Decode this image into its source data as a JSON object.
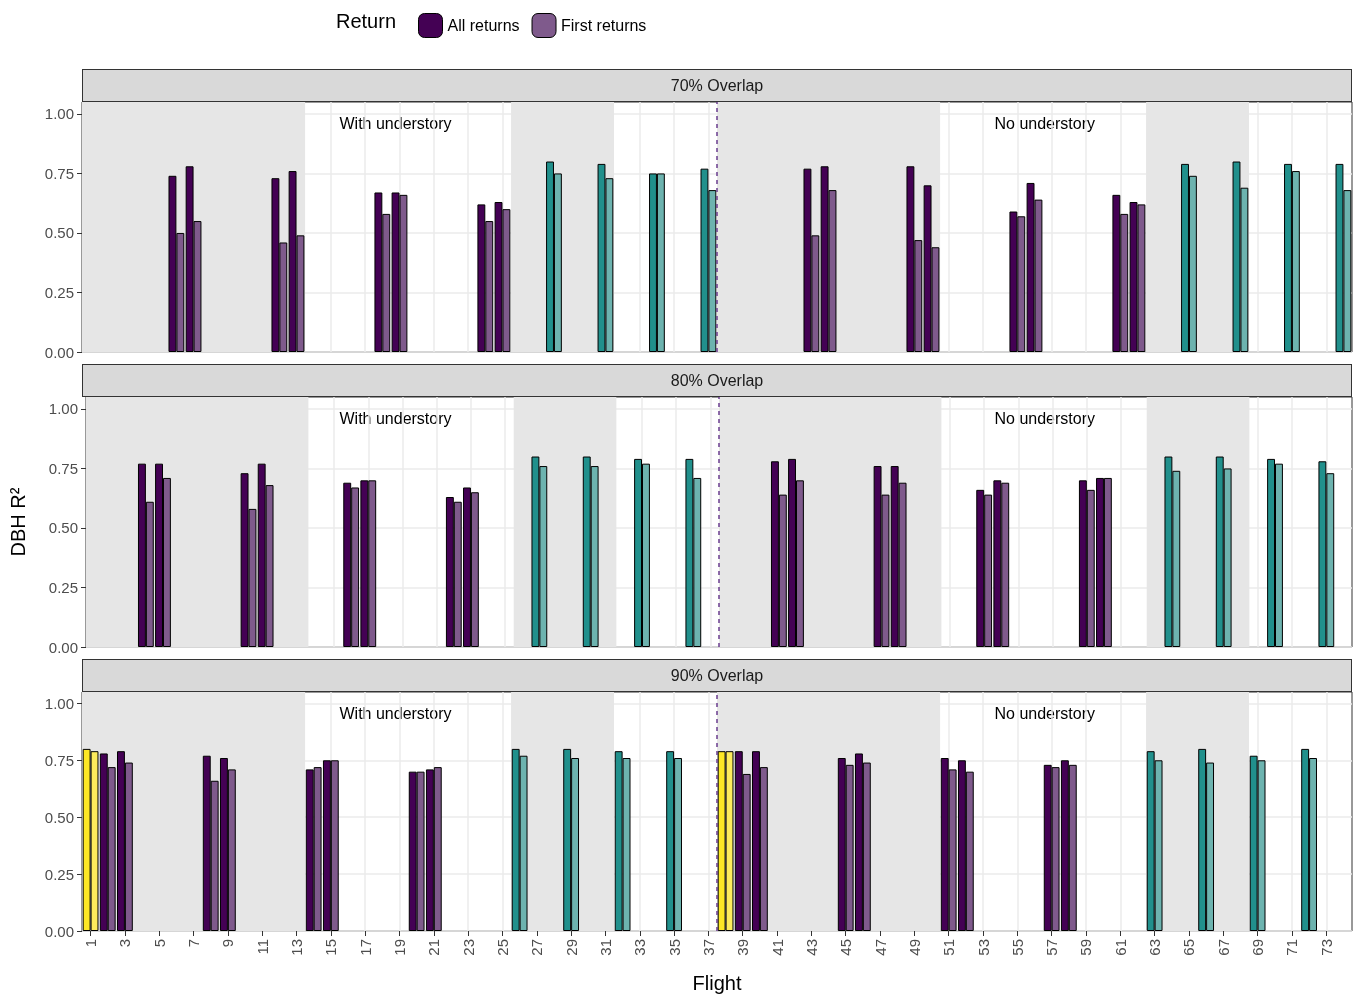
{
  "chart_data": [
    {
      "type": "bar",
      "title": "70% Overlap",
      "legend": "top",
      "legend_title": "Return",
      "tick_labels": "y",
      "grid": true,
      "annotations": [
        "With understory",
        "No understory"
      ],
      "x": [
        6,
        7,
        12,
        13,
        18,
        19,
        24,
        25,
        28,
        31,
        34,
        37,
        43,
        44,
        49,
        50,
        55,
        56,
        61,
        62,
        65,
        68,
        71,
        74
      ],
      "xlim": [
        0.5,
        74.5
      ],
      "xticks": [
        1,
        3,
        5,
        7,
        9,
        11,
        13,
        15,
        17,
        19,
        21,
        23,
        25,
        27,
        29,
        31,
        33,
        35,
        37,
        39,
        41,
        43,
        45,
        47,
        49,
        51,
        53,
        55,
        57,
        59,
        61,
        63,
        65,
        67,
        69,
        71,
        73
      ],
      "ylim": [
        0,
        1.05
      ],
      "yticks": [
        {
          "value": 0,
          "label": "0.00"
        },
        {
          "value": 0.25,
          "label": "0.25"
        },
        {
          "value": 0.5,
          "label": "0.50"
        },
        {
          "value": 0.75,
          "label": "0.75"
        },
        {
          "value": 1,
          "label": "1.00"
        }
      ],
      "bands": [
        {
          "axis": "x",
          "from": 0.5,
          "to": 13.5,
          "color": "#e6e6e6"
        },
        {
          "axis": "x",
          "from": 25.5,
          "to": 31.5,
          "color": "#e6e6e6"
        },
        {
          "axis": "x",
          "from": 37.5,
          "to": 50.5,
          "color": "#e6e6e6"
        },
        {
          "axis": "x",
          "from": 62.5,
          "to": 68.5,
          "color": "#e6e6e6"
        }
      ],
      "ref_lines": [
        {
          "axis": "x",
          "value": 37.5,
          "color": "#6a3d8f",
          "line_style": "dashed"
        }
      ],
      "series": [
        {
          "name": "All returns",
          "color": "#440154",
          "values": [
            0.74,
            0.78,
            0.73,
            0.76,
            0.67,
            0.67,
            0.62,
            0.63,
            0.8,
            0.79,
            0.75,
            0.77,
            0.77,
            0.78,
            0.78,
            0.7,
            0.59,
            0.71,
            0.66,
            0.63,
            0.79,
            0.8,
            0.79,
            0.79
          ],
          "colors": [
            "#440154",
            "#440154",
            "#440154",
            "#440154",
            "#440154",
            "#440154",
            "#440154",
            "#440154",
            "#21908c",
            "#21908c",
            "#21908c",
            "#21908c",
            "#440154",
            "#440154",
            "#440154",
            "#440154",
            "#440154",
            "#440154",
            "#440154",
            "#440154",
            "#21908c",
            "#21908c",
            "#21908c",
            "#21908c"
          ]
        },
        {
          "name": "First returns",
          "color": "#7f5a8c",
          "values": [
            0.5,
            0.55,
            0.46,
            0.49,
            0.58,
            0.66,
            0.55,
            0.6,
            0.75,
            0.73,
            0.75,
            0.68,
            0.49,
            0.68,
            0.47,
            0.44,
            0.57,
            0.64,
            0.58,
            0.62,
            0.74,
            0.69,
            0.76,
            0.68
          ],
          "colors": [
            "#7f5a8c",
            "#7f5a8c",
            "#7f5a8c",
            "#7f5a8c",
            "#7f5a8c",
            "#7f5a8c",
            "#7f5a8c",
            "#7f5a8c",
            "#6db3af",
            "#6db3af",
            "#6db3af",
            "#6db3af",
            "#7f5a8c",
            "#7f5a8c",
            "#7f5a8c",
            "#7f5a8c",
            "#7f5a8c",
            "#7f5a8c",
            "#7f5a8c",
            "#7f5a8c",
            "#6db3af",
            "#6db3af",
            "#6db3af",
            "#6db3af"
          ]
        }
      ]
    },
    {
      "type": "bar",
      "title": "80% Overlap",
      "ylabel": "DBH R²",
      "tick_labels": "y",
      "grid": true,
      "annotations": [
        "With understory",
        "No understory"
      ],
      "x": [
        4,
        5,
        10,
        11,
        16,
        17,
        22,
        23,
        27,
        30,
        33,
        36,
        41,
        42,
        47,
        48,
        53,
        54,
        59,
        60,
        64,
        67,
        70,
        73
      ],
      "xlim": [
        0.5,
        74.5
      ],
      "xticks": [
        1,
        3,
        5,
        7,
        9,
        11,
        13,
        15,
        17,
        19,
        21,
        23,
        25,
        27,
        29,
        31,
        33,
        35,
        37,
        39,
        41,
        43,
        45,
        47,
        49,
        51,
        53,
        55,
        57,
        59,
        61,
        63,
        65,
        67,
        69,
        71,
        73
      ],
      "ylim": [
        0,
        1.05
      ],
      "yticks": [
        {
          "value": 0,
          "label": "0.00"
        },
        {
          "value": 0.25,
          "label": "0.25"
        },
        {
          "value": 0.5,
          "label": "0.50"
        },
        {
          "value": 0.75,
          "label": "0.75"
        },
        {
          "value": 1,
          "label": "1.00"
        }
      ],
      "bands": [
        {
          "axis": "x",
          "from": 0.5,
          "to": 13.5,
          "color": "#e6e6e6"
        },
        {
          "axis": "x",
          "from": 25.5,
          "to": 31.5,
          "color": "#e6e6e6"
        },
        {
          "axis": "x",
          "from": 37.5,
          "to": 50.5,
          "color": "#e6e6e6"
        },
        {
          "axis": "x",
          "from": 62.5,
          "to": 68.5,
          "color": "#e6e6e6"
        }
      ],
      "ref_lines": [
        {
          "axis": "x",
          "value": 37.5,
          "color": "#6a3d8f",
          "line_style": "dashed"
        }
      ],
      "series": [
        {
          "color": "#440154",
          "values": [
            0.77,
            0.77,
            0.73,
            0.77,
            0.69,
            0.7,
            0.63,
            0.67,
            0.8,
            0.8,
            0.79,
            0.79,
            0.78,
            0.79,
            0.76,
            0.76,
            0.66,
            0.7,
            0.7,
            0.71,
            0.8,
            0.8,
            0.79,
            0.78
          ],
          "colors": [
            "#440154",
            "#440154",
            "#440154",
            "#440154",
            "#440154",
            "#440154",
            "#440154",
            "#440154",
            "#21908c",
            "#21908c",
            "#21908c",
            "#21908c",
            "#440154",
            "#440154",
            "#440154",
            "#440154",
            "#440154",
            "#440154",
            "#440154",
            "#440154",
            "#21908c",
            "#21908c",
            "#21908c",
            "#21908c"
          ]
        },
        {
          "color": "#7f5a8c",
          "values": [
            0.61,
            0.71,
            0.58,
            0.68,
            0.67,
            0.7,
            0.61,
            0.65,
            0.76,
            0.76,
            0.77,
            0.71,
            0.64,
            0.7,
            0.64,
            0.69,
            0.64,
            0.69,
            0.66,
            0.71,
            0.74,
            0.75,
            0.77,
            0.73
          ],
          "colors": [
            "#7f5a8c",
            "#7f5a8c",
            "#7f5a8c",
            "#7f5a8c",
            "#7f5a8c",
            "#7f5a8c",
            "#7f5a8c",
            "#7f5a8c",
            "#6db3af",
            "#6db3af",
            "#6db3af",
            "#6db3af",
            "#7f5a8c",
            "#7f5a8c",
            "#7f5a8c",
            "#7f5a8c",
            "#7f5a8c",
            "#7f5a8c",
            "#7f5a8c",
            "#7f5a8c",
            "#6db3af",
            "#6db3af",
            "#6db3af",
            "#6db3af"
          ]
        }
      ]
    },
    {
      "type": "bar",
      "title": "90% Overlap",
      "xlabel": "Flight",
      "grid": true,
      "annotations": [
        "With understory",
        "No understory"
      ],
      "x": [
        1,
        2,
        3,
        8,
        9,
        14,
        15,
        20,
        21,
        26,
        29,
        32,
        35,
        38,
        39,
        40,
        45,
        46,
        51,
        52,
        57,
        58,
        63,
        66,
        69,
        72
      ],
      "xlim": [
        0.5,
        74.5
      ],
      "xticks": [
        1,
        3,
        5,
        7,
        9,
        11,
        13,
        15,
        17,
        19,
        21,
        23,
        25,
        27,
        29,
        31,
        33,
        35,
        37,
        39,
        41,
        43,
        45,
        47,
        49,
        51,
        53,
        55,
        57,
        59,
        61,
        63,
        65,
        67,
        69,
        71,
        73
      ],
      "ylim": [
        0,
        1.05
      ],
      "yticks": [
        {
          "value": 0,
          "label": "0.00"
        },
        {
          "value": 0.25,
          "label": "0.25"
        },
        {
          "value": 0.5,
          "label": "0.50"
        },
        {
          "value": 0.75,
          "label": "0.75"
        },
        {
          "value": 1,
          "label": "1.00"
        }
      ],
      "bands": [
        {
          "axis": "x",
          "from": 0.5,
          "to": 13.5,
          "color": "#e6e6e6"
        },
        {
          "axis": "x",
          "from": 25.5,
          "to": 31.5,
          "color": "#e6e6e6"
        },
        {
          "axis": "x",
          "from": 37.5,
          "to": 50.5,
          "color": "#e6e6e6"
        },
        {
          "axis": "x",
          "from": 62.5,
          "to": 68.5,
          "color": "#e6e6e6"
        }
      ],
      "ref_lines": [
        {
          "axis": "x",
          "value": 37.5,
          "color": "#6a3d8f",
          "line_style": "dashed"
        }
      ],
      "series": [
        {
          "color": "#440154",
          "values": [
            0.8,
            0.78,
            0.79,
            0.77,
            0.76,
            0.71,
            0.75,
            0.7,
            0.71,
            0.8,
            0.8,
            0.79,
            0.79,
            0.79,
            0.79,
            0.79,
            0.76,
            0.78,
            0.76,
            0.75,
            0.73,
            0.75,
            0.79,
            0.8,
            0.77,
            0.8
          ],
          "colors": [
            "#fde725",
            "#440154",
            "#440154",
            "#440154",
            "#440154",
            "#440154",
            "#440154",
            "#440154",
            "#440154",
            "#21908c",
            "#21908c",
            "#21908c",
            "#21908c",
            "#fde725",
            "#440154",
            "#440154",
            "#440154",
            "#440154",
            "#440154",
            "#440154",
            "#440154",
            "#440154",
            "#21908c",
            "#21908c",
            "#21908c",
            "#21908c"
          ]
        },
        {
          "color": "#7f5a8c",
          "values": [
            0.79,
            0.72,
            0.74,
            0.66,
            0.71,
            0.72,
            0.75,
            0.7,
            0.72,
            0.77,
            0.76,
            0.76,
            0.76,
            0.79,
            0.69,
            0.72,
            0.73,
            0.74,
            0.71,
            0.7,
            0.72,
            0.73,
            0.75,
            0.74,
            0.75,
            0.76
          ],
          "colors": [
            "#fdeb5c",
            "#7f5a8c",
            "#7f5a8c",
            "#7f5a8c",
            "#7f5a8c",
            "#7f5a8c",
            "#7f5a8c",
            "#7f5a8c",
            "#7f5a8c",
            "#6db3af",
            "#6db3af",
            "#6db3af",
            "#6db3af",
            "#fdeb5c",
            "#7f5a8c",
            "#7f5a8c",
            "#7f5a8c",
            "#7f5a8c",
            "#7f5a8c",
            "#7f5a8c",
            "#7f5a8c",
            "#7f5a8c",
            "#6db3af",
            "#6db3af",
            "#6db3af",
            "#6db3af"
          ]
        }
      ]
    }
  ]
}
